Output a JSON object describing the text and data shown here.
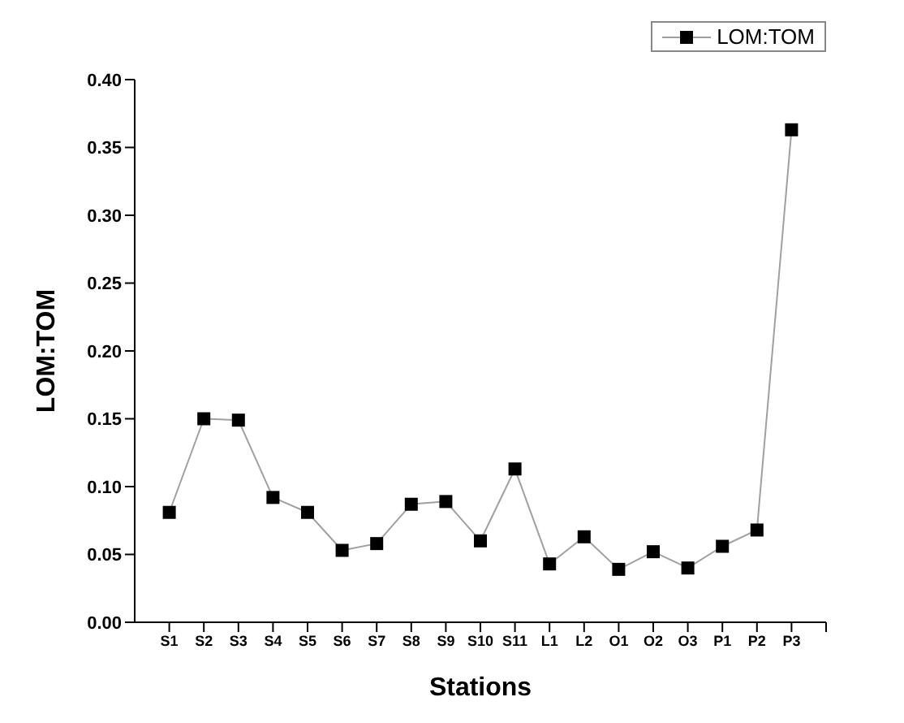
{
  "chart_data": {
    "type": "line",
    "xlabel": "Stations",
    "ylabel": "LOM:TOM",
    "categories": [
      "S1",
      "S2",
      "S3",
      "S4",
      "S5",
      "S6",
      "S7",
      "S8",
      "S9",
      "S10",
      "S11",
      "L1",
      "L2",
      "O1",
      "O2",
      "O3",
      "P1",
      "P2",
      "P3",
      null
    ],
    "series": [
      {
        "name": "LOM:TOM",
        "color": "#a0a0a0",
        "values": [
          0.081,
          0.15,
          0.149,
          0.092,
          0.081,
          0.053,
          0.058,
          0.087,
          0.089,
          0.06,
          0.113,
          0.043,
          0.063,
          0.039,
          0.052,
          0.04,
          0.056,
          0.068,
          0.363,
          null
        ]
      }
    ],
    "ylim": [
      0,
      0.4
    ],
    "yticks": [
      {
        "value": 0,
        "label": "0.00"
      },
      {
        "value": 0.05,
        "label": "0.05"
      },
      {
        "value": 0.1,
        "label": "0.10"
      },
      {
        "value": 0.15,
        "label": "0.15"
      },
      {
        "value": 0.2,
        "label": "0.20"
      },
      {
        "value": 0.25,
        "label": "0.25"
      },
      {
        "value": 0.3,
        "label": "0.30"
      },
      {
        "value": 0.35,
        "label": "0.35"
      },
      {
        "value": 0.4,
        "label": "0.40"
      }
    ],
    "grid": false,
    "legend": "top right",
    "marker": "square",
    "line_style": "solid"
  }
}
